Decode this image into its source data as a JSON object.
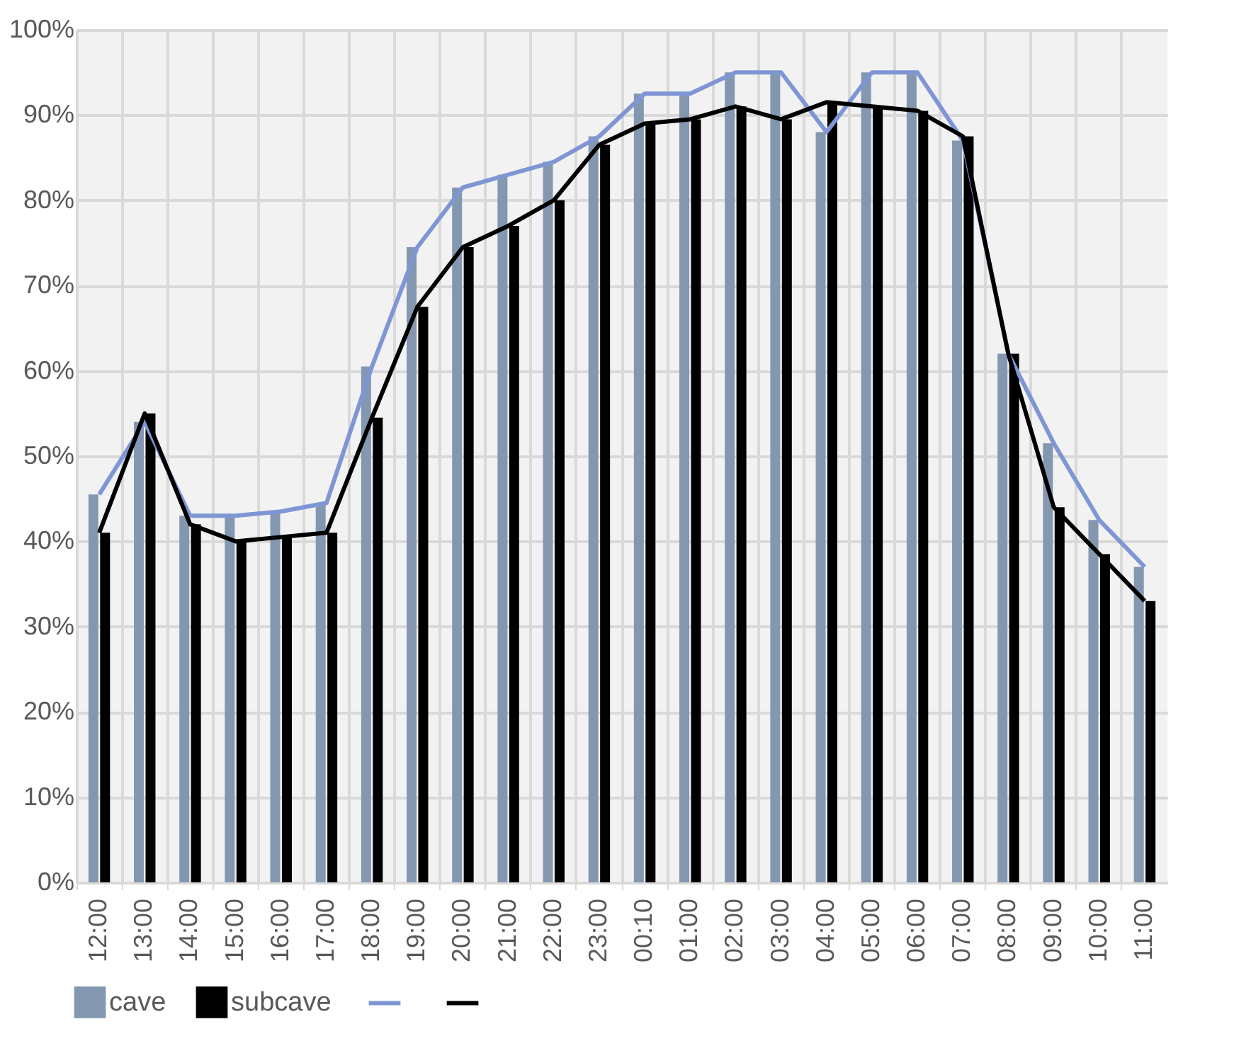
{
  "chart_data": {
    "type": "bar",
    "categories": [
      "12:00",
      "13:00",
      "14:00",
      "15:00",
      "16:00",
      "17:00",
      "18:00",
      "19:00",
      "20:00",
      "21:00",
      "22:00",
      "23:00",
      "00:10",
      "01:00",
      "02:00",
      "03:00",
      "04:00",
      "05:00",
      "06:00",
      "07:00",
      "08:00",
      "09:00",
      "10:00",
      "11:00"
    ],
    "series": [
      {
        "name": "cave",
        "color": "#8497b0",
        "values": [
          45.5,
          54,
          43,
          43,
          43.5,
          44.5,
          60.5,
          74.5,
          81.5,
          83,
          84.5,
          87.5,
          92.5,
          92.5,
          95,
          95,
          88,
          95,
          95,
          87,
          62,
          51.5,
          42.5,
          37
        ]
      },
      {
        "name": "subcave",
        "color": "#000000",
        "values": [
          41,
          55,
          42,
          40,
          40.5,
          41,
          54.5,
          67.5,
          74.5,
          77,
          80,
          86.5,
          89,
          89.5,
          91,
          89.5,
          91.5,
          91,
          90.5,
          87.5,
          62,
          44,
          38.5,
          33
        ]
      },
      {
        "type": "line",
        "color": "#7f96d4",
        "values": [
          45.5,
          54,
          43,
          43,
          43.5,
          44.5,
          60.5,
          74.5,
          81.5,
          83,
          84.5,
          87.5,
          92.5,
          92.5,
          95,
          95,
          88,
          95,
          95,
          87,
          62,
          51.5,
          42.5,
          37
        ]
      },
      {
        "type": "line",
        "color": "#000000",
        "values": [
          41,
          55,
          42,
          40,
          40.5,
          41,
          54.5,
          67.5,
          74.5,
          77,
          80,
          86.5,
          89,
          89.5,
          91,
          89.5,
          91.5,
          91,
          90.5,
          87.5,
          62,
          44,
          38.5,
          33
        ]
      }
    ],
    "ylim": [
      0,
      100
    ],
    "yticks": [
      {
        "value": 0,
        "label": "0%"
      },
      {
        "value": 10,
        "label": "10%"
      },
      {
        "value": 20,
        "label": "20%"
      },
      {
        "value": 30,
        "label": "30%"
      },
      {
        "value": 40,
        "label": "40%"
      },
      {
        "value": 50,
        "label": "50%"
      },
      {
        "value": 60,
        "label": "60%"
      },
      {
        "value": 70,
        "label": "70%"
      },
      {
        "value": 80,
        "label": "80%"
      },
      {
        "value": 90,
        "label": "90%"
      },
      {
        "value": 100,
        "label": "100%"
      }
    ],
    "grid": true,
    "legend": "bottom",
    "marker": "none",
    "line_style": "solid"
  }
}
